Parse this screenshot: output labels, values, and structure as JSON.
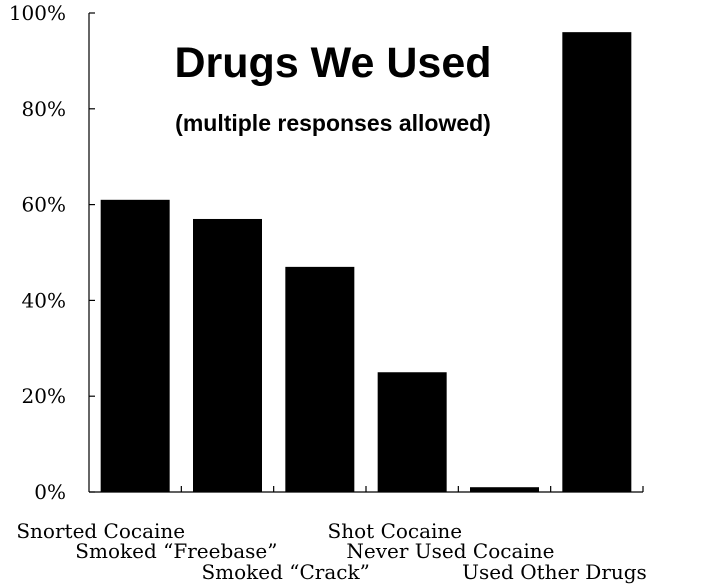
{
  "chart_data": {
    "type": "bar",
    "title": "Drugs We Used",
    "subtitle": "(multiple responses allowed)",
    "categories": [
      "Snorted Cocaine",
      "Smoked “Freebase”",
      "Smoked “Crack”",
      "Shot Cocaine",
      "Never Used Cocaine",
      "Used Other Drugs"
    ],
    "values": [
      61,
      57,
      47,
      25,
      1,
      96
    ],
    "ylim": [
      0,
      100
    ],
    "yticks": [
      0,
      20,
      40,
      60,
      80,
      100
    ],
    "ytick_labels": [
      "0%",
      "20%",
      "40%",
      "60%",
      "80%",
      "100%"
    ],
    "xlabel": "",
    "ylabel": "",
    "bar_color": "#000000",
    "grid": false,
    "legend": "none"
  }
}
